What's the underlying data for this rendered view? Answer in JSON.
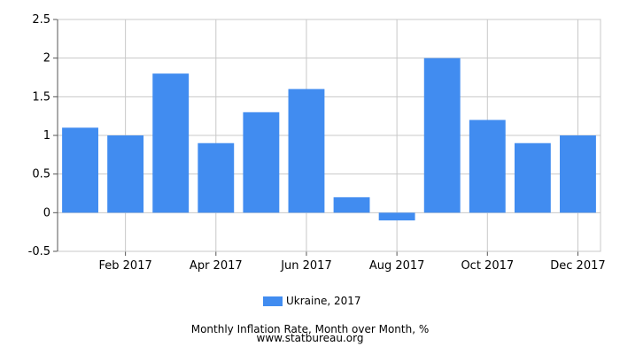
{
  "chart_data": {
    "type": "bar",
    "categories": [
      "Jan 2017",
      "Feb 2017",
      "Mar 2017",
      "Apr 2017",
      "May 2017",
      "Jun 2017",
      "Jul 2017",
      "Aug 2017",
      "Sep 2017",
      "Oct 2017",
      "Nov 2017",
      "Dec 2017"
    ],
    "x_tick_labels": [
      "Feb 2017",
      "Apr 2017",
      "Jun 2017",
      "Aug 2017",
      "Oct 2017",
      "Dec 2017"
    ],
    "series": [
      {
        "name": "Ukraine, 2017",
        "color": "#418cf0",
        "values": [
          1.1,
          1.0,
          1.8,
          0.9,
          1.3,
          1.6,
          0.2,
          -0.1,
          2.0,
          1.2,
          0.9,
          1.0
        ]
      }
    ],
    "ylim": [
      -0.5,
      2.5
    ],
    "y_ticks": [
      "-0.5",
      "0",
      "0.5",
      "1",
      "1.5",
      "2",
      "2.5"
    ],
    "grid": true,
    "legend_placement": "bottom-center",
    "title": "Monthly Inflation Rate, Month over Month, %",
    "source": "www.statbureau.org"
  }
}
